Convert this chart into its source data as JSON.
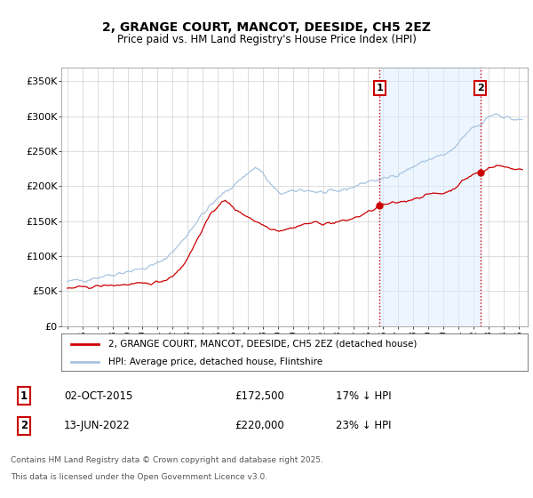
{
  "title": "2, GRANGE COURT, MANCOT, DEESIDE, CH5 2EZ",
  "subtitle": "Price paid vs. HM Land Registry's House Price Index (HPI)",
  "ylim": [
    0,
    370000
  ],
  "yticks": [
    0,
    50000,
    100000,
    150000,
    200000,
    250000,
    300000,
    350000
  ],
  "ytick_labels": [
    "£0",
    "£50K",
    "£100K",
    "£150K",
    "£200K",
    "£250K",
    "£300K",
    "£350K"
  ],
  "xlim_start": 1994.6,
  "xlim_end": 2025.6,
  "xticks": [
    1995,
    1996,
    1997,
    1998,
    1999,
    2000,
    2001,
    2002,
    2003,
    2004,
    2005,
    2006,
    2007,
    2008,
    2009,
    2010,
    2011,
    2012,
    2013,
    2014,
    2015,
    2016,
    2017,
    2018,
    2019,
    2020,
    2021,
    2022,
    2023,
    2024,
    2025
  ],
  "hpi_color": "#a8c4e0",
  "price_color": "#cc0000",
  "bg_color": "#ffffff",
  "grid_color": "#d0d0d0",
  "legend_label_price": "2, GRANGE COURT, MANCOT, DEESIDE, CH5 2EZ (detached house)",
  "legend_label_hpi": "HPI: Average price, detached house, Flintshire",
  "annotation1_label": "1",
  "annotation1_date": "02-OCT-2015",
  "annotation1_price": "£172,500",
  "annotation1_hpi": "17% ↓ HPI",
  "annotation1_year": 2015.75,
  "annotation1_value": 172500,
  "annotation2_label": "2",
  "annotation2_date": "13-JUN-2022",
  "annotation2_price": "£220,000",
  "annotation2_hpi": "23% ↓ HPI",
  "annotation2_year": 2022.45,
  "annotation2_value": 220000,
  "footnote_line1": "Contains HM Land Registry data © Crown copyright and database right 2025.",
  "footnote_line2": "This data is licensed under the Open Government Licence v3.0."
}
